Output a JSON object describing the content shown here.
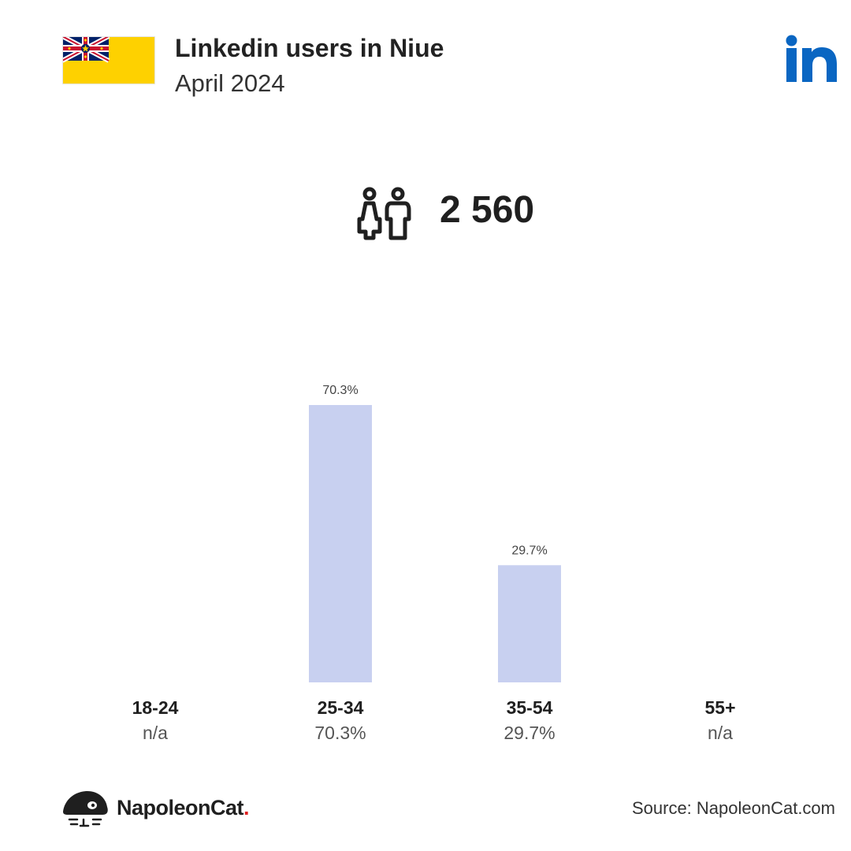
{
  "header": {
    "title": "Linkedin users in Niue",
    "subtitle": "April 2024"
  },
  "icons": {
    "flag": "niue-flag-icon",
    "platform": "linkedin-logo-icon",
    "users": "users-icon",
    "brand": "napoleoncat-logo-icon"
  },
  "summary": {
    "total_users": "2 560"
  },
  "colors": {
    "bar": "#c8d0f0",
    "linkedin_blue": "#0a66c2",
    "flag_yellow": "#fed100",
    "brand_dot": "#e02020"
  },
  "chart_data": {
    "type": "bar",
    "categories": [
      "18-24",
      "25-34",
      "35-54",
      "55+"
    ],
    "values": [
      null,
      70.3,
      29.7,
      null
    ],
    "value_labels": [
      "n/a",
      "70.3%",
      "29.7%",
      "n/a"
    ],
    "bar_labels": [
      "",
      "70.3%",
      "29.7%",
      ""
    ],
    "unit": "%",
    "ylim": [
      0,
      70.3
    ],
    "grid": false,
    "legend": "none"
  },
  "footer": {
    "brand_name": "NapoleonCat",
    "brand_dot": ".",
    "source": "Source: NapoleonCat.com"
  }
}
